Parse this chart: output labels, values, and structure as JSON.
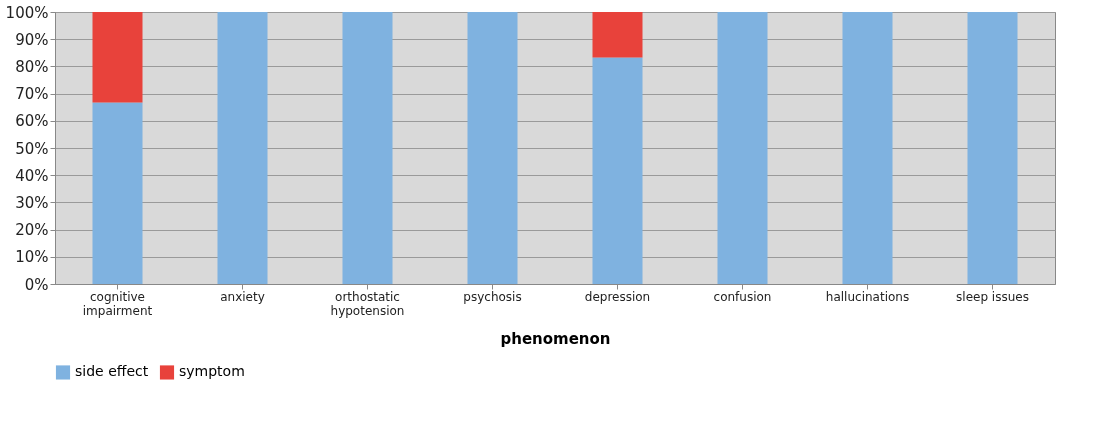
{
  "chart_data": {
    "type": "bar",
    "stacked": true,
    "xlabel": "phenomenon",
    "categories": [
      "cognitive impairment",
      "anxiety",
      "orthostatic hypotension",
      "psychosis",
      "depression",
      "confusion",
      "hallucinations",
      "sleep issues"
    ],
    "series": [
      {
        "name": "side effect",
        "color": "#7fb2e0",
        "values": [
          66.7,
          100,
          100,
          100,
          83.3,
          100,
          100,
          100
        ]
      },
      {
        "name": "symptom",
        "color": "#e8423b",
        "values": [
          33.3,
          0,
          0,
          0,
          16.7,
          0,
          0,
          0
        ]
      }
    ],
    "ylim": [
      0,
      100
    ],
    "yticks": [
      {
        "value": 0,
        "label": "0%"
      },
      {
        "value": 10,
        "label": "10%"
      },
      {
        "value": 20,
        "label": "20%"
      },
      {
        "value": 30,
        "label": "30%"
      },
      {
        "value": 40,
        "label": "40%"
      },
      {
        "value": 50,
        "label": "50%"
      },
      {
        "value": 60,
        "label": "60%"
      },
      {
        "value": 70,
        "label": "70%"
      },
      {
        "value": 80,
        "label": "80%"
      },
      {
        "value": 90,
        "label": "90%"
      },
      {
        "value": 100,
        "label": "100%"
      }
    ],
    "grid": "y",
    "legend": "bottom"
  }
}
